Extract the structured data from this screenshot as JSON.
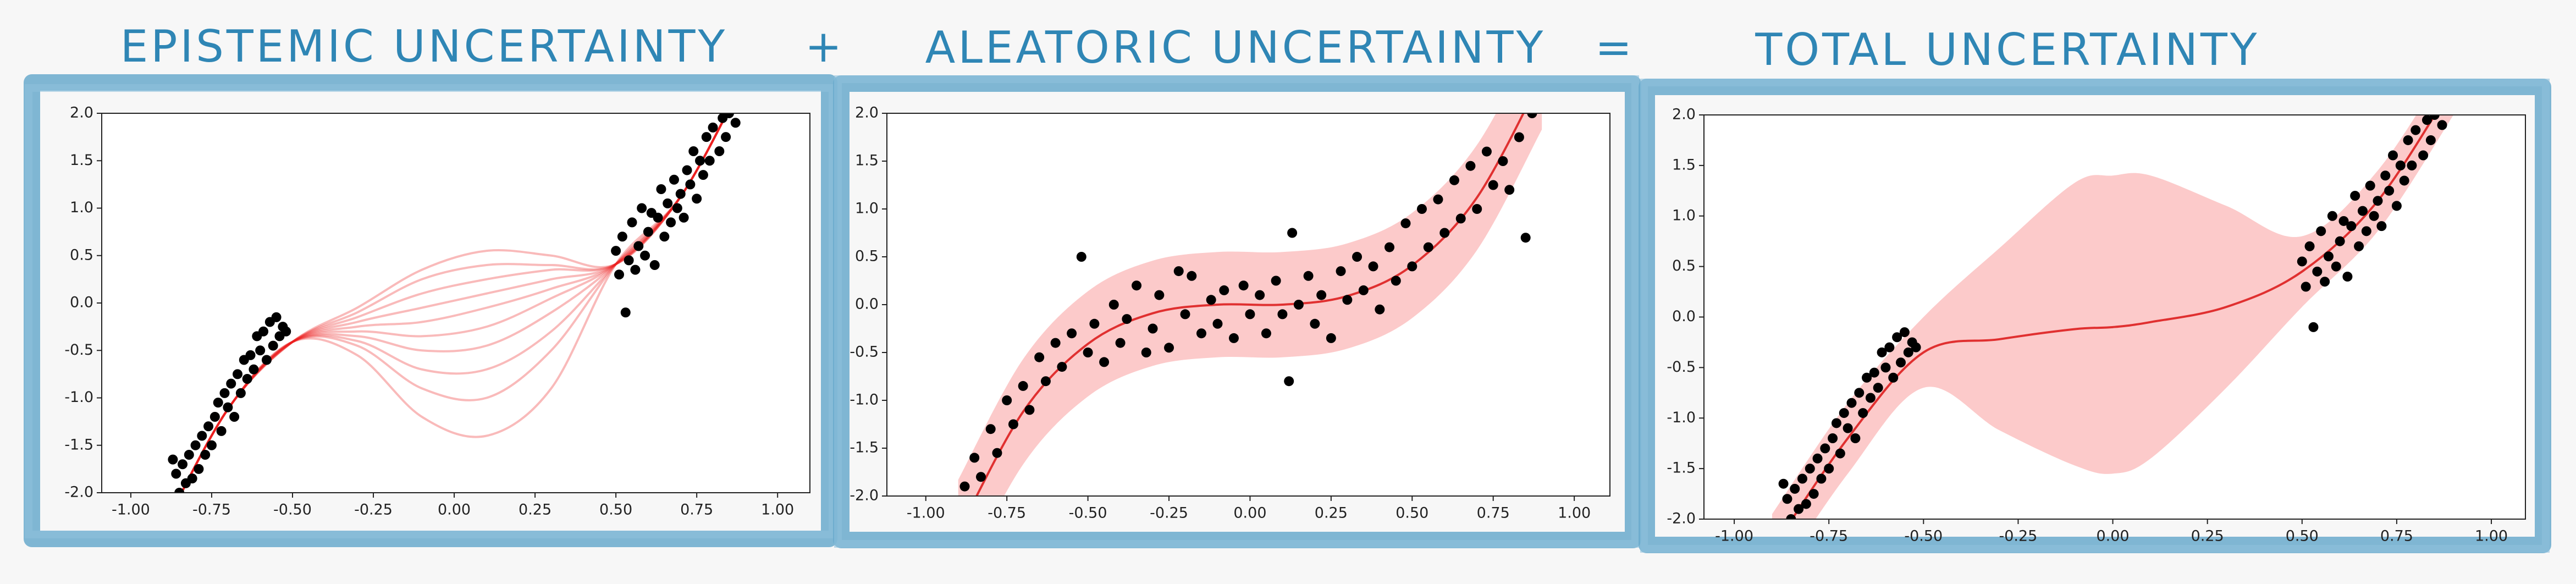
{
  "operators": [
    "+",
    "="
  ],
  "chart_data": [
    {
      "type": "scatter",
      "title": "EPISTEMIC UNCERTAINTY",
      "xlim": [
        -1.09,
        1.1
      ],
      "ylim": [
        -2,
        2
      ],
      "xticks": [
        {
          "value": -1,
          "label": "-1.00"
        },
        {
          "value": -0.75,
          "label": "-0.75"
        },
        {
          "value": -0.5,
          "label": "-0.50"
        },
        {
          "value": -0.25,
          "label": "-0.25"
        },
        {
          "value": 0,
          "label": "0.00"
        },
        {
          "value": 0.25,
          "label": "0.25"
        },
        {
          "value": 0.5,
          "label": "0.50"
        },
        {
          "value": 0.75,
          "label": "0.75"
        },
        {
          "value": 1,
          "label": "1.00"
        }
      ],
      "yticks": [
        {
          "value": -2,
          "label": "-2.0"
        },
        {
          "value": -1.5,
          "label": "-1.5"
        },
        {
          "value": -1,
          "label": "-1.0"
        },
        {
          "value": -0.5,
          "label": "-0.5"
        },
        {
          "value": 0,
          "label": "0.0"
        },
        {
          "value": 0.5,
          "label": "0.5"
        },
        {
          "value": 1,
          "label": "1.0"
        },
        {
          "value": 1.5,
          "label": "1.5"
        },
        {
          "value": 2,
          "label": "2.0"
        }
      ],
      "x": [
        -0.9,
        -0.7,
        -0.5,
        -0.3,
        -0.1,
        0.1,
        0.3,
        0.5,
        0.7,
        0.9
      ],
      "series": [
        {
          "type": "line",
          "color": "rgba(235,25,25,0.3)",
          "values": [
            -2.38,
            -1.12,
            -0.41,
            -0.55,
            -1.2,
            -1.4,
            -0.9,
            0.41,
            1.12,
            2.38
          ]
        },
        {
          "type": "line",
          "color": "rgba(235,25,25,0.3)",
          "values": [
            -2.38,
            -1.12,
            -0.41,
            -0.45,
            -0.9,
            -1.0,
            -0.5,
            0.41,
            1.12,
            2.38
          ]
        },
        {
          "type": "line",
          "color": "rgba(235,25,25,0.3)",
          "values": [
            -2.38,
            -1.12,
            -0.41,
            -0.4,
            -0.7,
            -0.7,
            -0.3,
            0.41,
            1.12,
            2.38
          ]
        },
        {
          "type": "line",
          "color": "rgba(235,25,25,0.3)",
          "values": [
            -2.38,
            -1.12,
            -0.41,
            -0.35,
            -0.5,
            -0.45,
            -0.1,
            0.41,
            1.12,
            2.38
          ]
        },
        {
          "type": "line",
          "color": "rgba(235,25,25,0.3)",
          "values": [
            -2.38,
            -1.12,
            -0.41,
            -0.3,
            -0.35,
            -0.25,
            0.05,
            0.41,
            1.12,
            2.38
          ]
        },
        {
          "type": "line",
          "color": "rgba(235,25,25,0.3)",
          "values": [
            -2.38,
            -1.12,
            -0.41,
            -0.25,
            -0.2,
            -0.05,
            0.15,
            0.41,
            1.12,
            2.38
          ]
        },
        {
          "type": "line",
          "color": "rgba(235,25,25,0.3)",
          "values": [
            -2.38,
            -1.12,
            -0.41,
            -0.2,
            -0.05,
            0.1,
            0.25,
            0.41,
            1.12,
            2.38
          ]
        },
        {
          "type": "line",
          "color": "rgba(235,25,25,0.3)",
          "values": [
            -2.38,
            -1.12,
            -0.41,
            -0.15,
            0.1,
            0.25,
            0.35,
            0.41,
            1.12,
            2.38
          ]
        },
        {
          "type": "line",
          "color": "rgba(235,25,25,0.3)",
          "values": [
            -2.38,
            -1.12,
            -0.41,
            -0.1,
            0.25,
            0.4,
            0.4,
            0.41,
            1.12,
            2.38
          ]
        },
        {
          "type": "line",
          "color": "rgba(235,25,25,0.3)",
          "values": [
            -2.38,
            -1.12,
            -0.41,
            -0.05,
            0.35,
            0.55,
            0.5,
            0.41,
            1.12,
            2.38
          ]
        },
        {
          "type": "scatter",
          "color": "#000000",
          "x": [
            -0.87,
            -0.86,
            -0.85,
            -0.84,
            -0.83,
            -0.82,
            -0.81,
            -0.8,
            -0.79,
            -0.78,
            -0.77,
            -0.76,
            -0.75,
            -0.74,
            -0.73,
            -0.72,
            -0.71,
            -0.7,
            -0.69,
            -0.68,
            -0.67,
            -0.66,
            -0.65,
            -0.64,
            -0.63,
            -0.62,
            -0.61,
            -0.6,
            -0.59,
            -0.58,
            -0.57,
            -0.56,
            -0.55,
            -0.54,
            -0.53,
            -0.52,
            0.5,
            0.51,
            0.52,
            0.53,
            0.54,
            0.55,
            0.56,
            0.57,
            0.58,
            0.59,
            0.6,
            0.61,
            0.62,
            0.63,
            0.64,
            0.65,
            0.66,
            0.67,
            0.68,
            0.69,
            0.7,
            0.71,
            0.72,
            0.73,
            0.74,
            0.75,
            0.76,
            0.77,
            0.78,
            0.79,
            0.8,
            0.82,
            0.83,
            0.84,
            0.85,
            0.87
          ],
          "values": [
            -1.65,
            -1.8,
            -2.0,
            -1.7,
            -1.9,
            -1.6,
            -1.85,
            -1.5,
            -1.75,
            -1.4,
            -1.6,
            -1.3,
            -1.5,
            -1.2,
            -1.05,
            -1.35,
            -0.95,
            -1.1,
            -0.85,
            -1.2,
            -0.75,
            -0.95,
            -0.6,
            -0.8,
            -0.55,
            -0.7,
            -0.35,
            -0.5,
            -0.3,
            -0.6,
            -0.2,
            -0.45,
            -0.15,
            -0.35,
            -0.25,
            -0.3,
            0.55,
            0.3,
            0.7,
            -0.1,
            0.45,
            0.85,
            0.35,
            0.6,
            1.0,
            0.5,
            0.75,
            0.95,
            0.4,
            0.9,
            1.2,
            0.7,
            1.05,
            0.85,
            1.3,
            1.0,
            1.15,
            0.9,
            1.4,
            1.25,
            1.6,
            1.1,
            1.5,
            1.35,
            1.75,
            1.5,
            1.85,
            1.6,
            1.95,
            1.75,
            2.0,
            1.9
          ]
        }
      ]
    },
    {
      "type": "scatter",
      "title": "ALEATORIC UNCERTAINTY",
      "xlim": [
        -1.12,
        1.11
      ],
      "ylim": [
        -2,
        2
      ],
      "xticks": [
        {
          "value": -1,
          "label": "-1.00"
        },
        {
          "value": -0.75,
          "label": "-0.75"
        },
        {
          "value": -0.5,
          "label": "-0.50"
        },
        {
          "value": -0.25,
          "label": "-0.25"
        },
        {
          "value": 0,
          "label": "0.00"
        },
        {
          "value": 0.25,
          "label": "0.25"
        },
        {
          "value": 0.5,
          "label": "0.50"
        },
        {
          "value": 0.75,
          "label": "0.75"
        },
        {
          "value": 1,
          "label": "1.00"
        }
      ],
      "yticks": [
        {
          "value": -2,
          "label": "-2.0"
        },
        {
          "value": -1.5,
          "label": "-1.5"
        },
        {
          "value": -1,
          "label": "-1.0"
        },
        {
          "value": -0.5,
          "label": "-0.5"
        },
        {
          "value": 0,
          "label": "0.0"
        },
        {
          "value": 0.5,
          "label": "0.5"
        },
        {
          "value": 1,
          "label": "1.0"
        },
        {
          "value": 1.5,
          "label": "1.5"
        },
        {
          "value": 2,
          "label": "2.0"
        }
      ],
      "x": [
        -0.9,
        -0.7,
        -0.5,
        -0.3,
        -0.1,
        0.1,
        0.3,
        0.5,
        0.7,
        0.9
      ],
      "series": [
        {
          "type": "band",
          "color": "rgba(250,150,150,0.5)",
          "upper": [
            -1.83,
            -0.57,
            0.14,
            0.46,
            0.55,
            0.55,
            0.64,
            0.96,
            1.67,
            2.93
          ],
          "lower": [
            -2.93,
            -1.67,
            -0.96,
            -0.64,
            -0.55,
            -0.55,
            -0.46,
            -0.14,
            0.57,
            1.83
          ]
        },
        {
          "type": "line",
          "color": "#e03030",
          "values": [
            -2.38,
            -1.12,
            -0.41,
            -0.09,
            0,
            0,
            0.09,
            0.41,
            1.12,
            2.38
          ]
        },
        {
          "type": "scatter",
          "color": "#000000",
          "x": [
            -0.88,
            -0.85,
            -0.83,
            -0.8,
            -0.78,
            -0.75,
            -0.73,
            -0.7,
            -0.68,
            -0.65,
            -0.63,
            -0.6,
            -0.58,
            -0.55,
            -0.52,
            -0.5,
            -0.48,
            -0.45,
            -0.42,
            -0.4,
            -0.38,
            -0.35,
            -0.32,
            -0.3,
            -0.28,
            -0.25,
            -0.22,
            -0.2,
            -0.18,
            -0.15,
            -0.12,
            -0.1,
            -0.08,
            -0.05,
            -0.02,
            0,
            0.03,
            0.05,
            0.08,
            0.1,
            0.12,
            0.13,
            0.15,
            0.18,
            0.2,
            0.22,
            0.25,
            0.28,
            0.3,
            0.33,
            0.35,
            0.38,
            0.4,
            0.43,
            0.45,
            0.48,
            0.5,
            0.53,
            0.55,
            0.58,
            0.6,
            0.63,
            0.65,
            0.68,
            0.7,
            0.73,
            0.75,
            0.78,
            0.8,
            0.83,
            0.85,
            0.87
          ],
          "values": [
            -1.9,
            -1.6,
            -1.8,
            -1.3,
            -1.55,
            -1.0,
            -1.25,
            -0.85,
            -1.1,
            -0.55,
            -0.8,
            -0.4,
            -0.65,
            -0.3,
            0.5,
            -0.5,
            -0.2,
            -0.6,
            0.0,
            -0.4,
            -0.15,
            0.2,
            -0.5,
            -0.25,
            0.1,
            -0.45,
            0.35,
            -0.1,
            0.3,
            -0.3,
            0.05,
            -0.2,
            0.15,
            -0.35,
            0.2,
            -0.1,
            0.1,
            -0.3,
            0.25,
            -0.1,
            -0.8,
            0.75,
            0.0,
            0.3,
            -0.2,
            0.1,
            -0.35,
            0.35,
            0.05,
            0.5,
            0.15,
            0.4,
            -0.05,
            0.6,
            0.25,
            0.85,
            0.4,
            1.0,
            0.6,
            1.1,
            0.75,
            1.3,
            0.9,
            1.45,
            1.0,
            1.6,
            1.25,
            1.5,
            1.2,
            1.75,
            0.7,
            2.0
          ]
        }
      ]
    },
    {
      "type": "scatter",
      "title": "TOTAL UNCERTAINTY",
      "xlim": [
        -1.08,
        1.09
      ],
      "ylim": [
        -2,
        2
      ],
      "xticks": [
        {
          "value": -1,
          "label": "-1.00"
        },
        {
          "value": -0.75,
          "label": "-0.75"
        },
        {
          "value": -0.5,
          "label": "-0.50"
        },
        {
          "value": -0.25,
          "label": "-0.25"
        },
        {
          "value": 0,
          "label": "0.00"
        },
        {
          "value": 0.25,
          "label": "0.25"
        },
        {
          "value": 0.5,
          "label": "0.50"
        },
        {
          "value": 0.75,
          "label": "0.75"
        },
        {
          "value": 1,
          "label": "1.00"
        }
      ],
      "yticks": [
        {
          "value": -2,
          "label": "-2.0"
        },
        {
          "value": -1.5,
          "label": "-1.5"
        },
        {
          "value": -1,
          "label": "-1.0"
        },
        {
          "value": -0.5,
          "label": "-0.5"
        },
        {
          "value": 0,
          "label": "0.0"
        },
        {
          "value": 0.5,
          "label": "0.5"
        },
        {
          "value": 1,
          "label": "1.0"
        },
        {
          "value": 1.5,
          "label": "1.5"
        },
        {
          "value": 2,
          "label": "2.0"
        }
      ],
      "x": [
        -0.9,
        -0.7,
        -0.5,
        -0.3,
        -0.1,
        0,
        0.1,
        0.3,
        0.5,
        0.7,
        0.9
      ],
      "series": [
        {
          "type": "band",
          "color": "rgba(250,150,150,0.5)",
          "upper": [
            -1.95,
            -0.85,
            0,
            0.68,
            1.33,
            1.4,
            1.4,
            1.1,
            0.8,
            1.45,
            2.6
          ],
          "lower": [
            -2.65,
            -1.55,
            -0.7,
            -1.12,
            -1.47,
            -1.55,
            -1.4,
            -0.7,
            0.1,
            0.85,
            2.0
          ]
        },
        {
          "type": "line",
          "color": "#e03030",
          "values": [
            -2.3,
            -1.2,
            -0.35,
            -0.22,
            -0.12,
            -0.1,
            -0.05,
            0.1,
            0.45,
            1.15,
            2.3
          ]
        },
        {
          "type": "scatter",
          "color": "#000000",
          "x": [
            -0.87,
            -0.86,
            -0.85,
            -0.84,
            -0.83,
            -0.82,
            -0.81,
            -0.8,
            -0.79,
            -0.78,
            -0.77,
            -0.76,
            -0.75,
            -0.74,
            -0.73,
            -0.72,
            -0.71,
            -0.7,
            -0.69,
            -0.68,
            -0.67,
            -0.66,
            -0.65,
            -0.64,
            -0.63,
            -0.62,
            -0.61,
            -0.6,
            -0.59,
            -0.58,
            -0.57,
            -0.56,
            -0.55,
            -0.54,
            -0.53,
            -0.52,
            0.5,
            0.51,
            0.52,
            0.53,
            0.54,
            0.55,
            0.56,
            0.57,
            0.58,
            0.59,
            0.6,
            0.61,
            0.62,
            0.63,
            0.64,
            0.65,
            0.66,
            0.67,
            0.68,
            0.69,
            0.7,
            0.71,
            0.72,
            0.73,
            0.74,
            0.75,
            0.76,
            0.77,
            0.78,
            0.79,
            0.8,
            0.82,
            0.83,
            0.84,
            0.85,
            0.87
          ],
          "values": [
            -1.65,
            -1.8,
            -2.0,
            -1.7,
            -1.9,
            -1.6,
            -1.85,
            -1.5,
            -1.75,
            -1.4,
            -1.6,
            -1.3,
            -1.5,
            -1.2,
            -1.05,
            -1.35,
            -0.95,
            -1.1,
            -0.85,
            -1.2,
            -0.75,
            -0.95,
            -0.6,
            -0.8,
            -0.55,
            -0.7,
            -0.35,
            -0.5,
            -0.3,
            -0.6,
            -0.2,
            -0.45,
            -0.15,
            -0.35,
            -0.25,
            -0.3,
            0.55,
            0.3,
            0.7,
            -0.1,
            0.45,
            0.85,
            0.35,
            0.6,
            1.0,
            0.5,
            0.75,
            0.95,
            0.4,
            0.9,
            1.2,
            0.7,
            1.05,
            0.85,
            1.3,
            1.0,
            1.15,
            0.9,
            1.4,
            1.25,
            1.6,
            1.1,
            1.5,
            1.35,
            1.75,
            1.5,
            1.85,
            1.6,
            1.95,
            1.75,
            2.0,
            1.9
          ]
        }
      ]
    }
  ]
}
